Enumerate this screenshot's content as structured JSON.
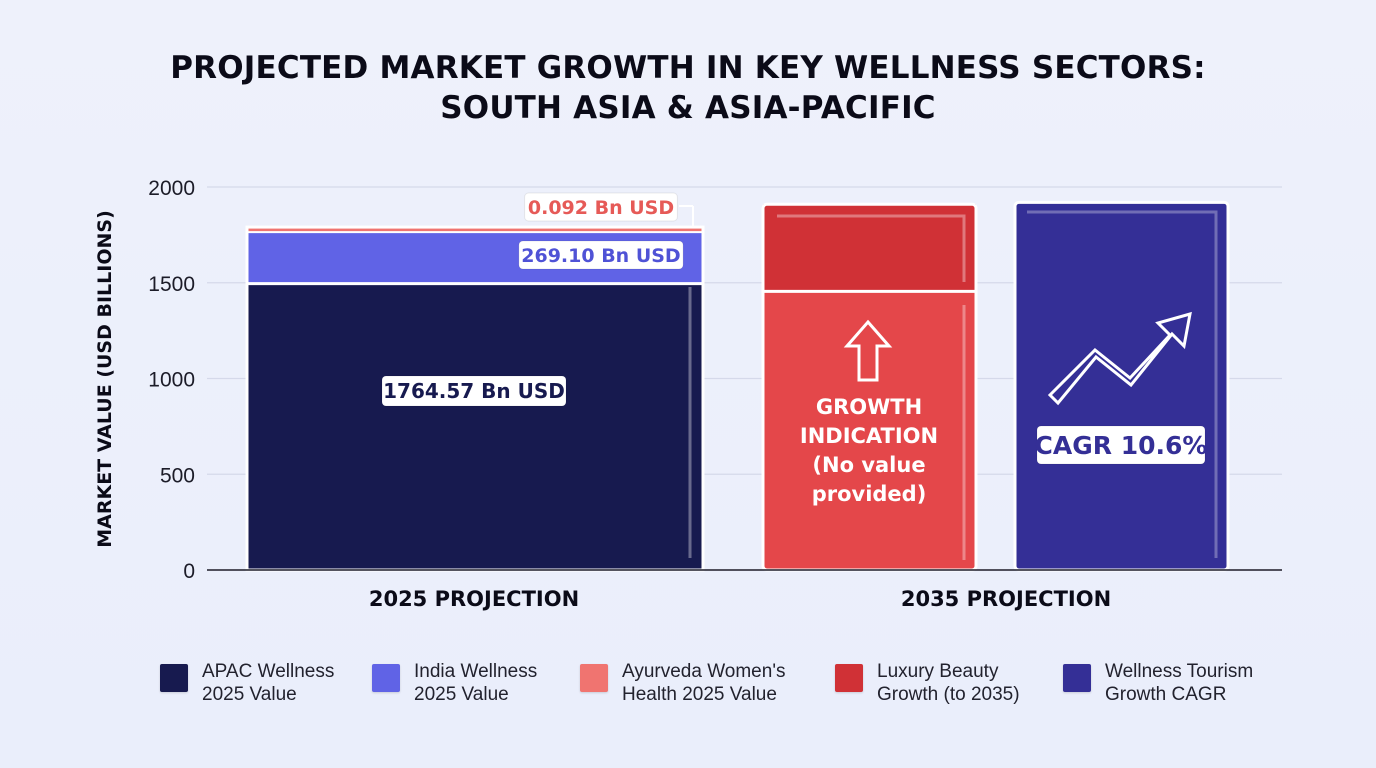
{
  "chart_data": {
    "type": "bar",
    "title": "PROJECTED MARKET GROWTH IN KEY WELLNESS SECTORS:",
    "subtitle": "SOUTH ASIA & ASIA-PACIFIC",
    "ylabel": "MARKET VALUE (USD BILLIONS)",
    "xlabel": "",
    "ylim": [
      0,
      2000
    ],
    "yticks": [
      0,
      500,
      1000,
      1500,
      2000
    ],
    "grid": true,
    "legend_position": "bottom",
    "categories": [
      "2025 PROJECTION",
      "2035 PROJECTION"
    ],
    "stacked_2025": [
      {
        "name": "APAC Wellness 2025 Value",
        "value": 1495.47,
        "label": "1764.57 Bn USD",
        "color": "#171a4f"
      },
      {
        "name": "India Wellness 2025 Value",
        "value": 269.1,
        "label": "269.10 Bn USD",
        "color": "#6063e6"
      },
      {
        "name": "Ayurveda Women's Health 2025 Value",
        "value": 0.092,
        "label": "0.092 Bn USD",
        "color": "#f07470"
      }
    ],
    "bars_2035": [
      {
        "name": "Luxury Beauty Growth (to 2035)",
        "value": 1910,
        "split_value": 1455,
        "color_top": "#d03136",
        "color_bottom": "#e4474a",
        "label_lines": [
          "GROWTH",
          "INDICATION",
          "(No value",
          "provided)"
        ]
      },
      {
        "name": "Wellness Tourism Growth CAGR",
        "value": 1920,
        "color": "#342f96",
        "label": "CAGR 10.6%"
      }
    ]
  },
  "legend": [
    {
      "label": "APAC Wellness\n2025 Value",
      "color": "#171a4f"
    },
    {
      "label": "India Wellness\n2025 Value",
      "color": "#6063e6"
    },
    {
      "label": "Ayurveda Women's\nHealth 2025 Value",
      "color": "#f07470"
    },
    {
      "label": "Luxury Beauty\nGrowth (to 2035)",
      "color": "#d03136"
    },
    {
      "label": "Wellness Tourism\nGrowth CAGR",
      "color": "#342f96"
    }
  ]
}
